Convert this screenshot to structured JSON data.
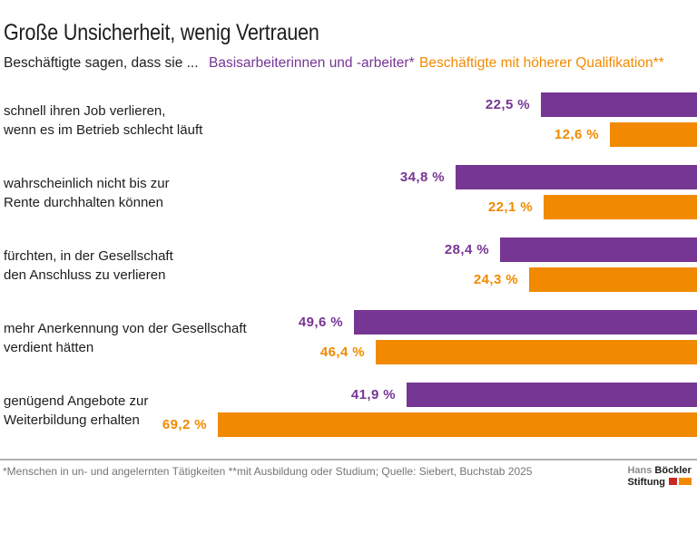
{
  "title": "Große Unsicherheit, wenig Vertrauen",
  "subtitle": "Beschäftigte sagen, dass sie ...",
  "legend": {
    "series1_label": "Basisarbeiterinnen und -arbeiter*",
    "series2_label": "Beschäftigte mit höherer Qualifikation**"
  },
  "colors": {
    "series1_purple": "#763693",
    "series2_orange": "#F18A00",
    "text": "#1d1d1b",
    "footnote_gray": "#757575",
    "divider_gray": "#b0b0b0",
    "logo_red": "#cb2821",
    "logo_orange": "#F18A00"
  },
  "chart_data": {
    "type": "bar",
    "orientation": "horizontal",
    "bars_right_aligned": true,
    "unit": "%",
    "xlim": [
      0,
      69.2
    ],
    "grid": false,
    "legend_position": "top",
    "title": "Große Unsicherheit, wenig Vertrauen",
    "subtitle": "Beschäftigte sagen, dass sie ...",
    "categories": [
      {
        "line1": "schnell ihren Job verlieren,",
        "line2": "wenn es im Betrieb schlecht läuft"
      },
      {
        "line1": "wahrscheinlich nicht bis zur",
        "line2": "Rente durchhalten können"
      },
      {
        "line1": "fürchten, in der Gesellschaft",
        "line2": "den Anschluss zu verlieren"
      },
      {
        "line1": "mehr Anerkennung von der Gesellschaft",
        "line2": "verdient hätten"
      },
      {
        "line1": "genügend Angebote zur",
        "line2": "Weiterbildung erhalten"
      }
    ],
    "series": [
      {
        "name": "Basisarbeiterinnen und -arbeiter*",
        "color": "#763693",
        "values": [
          22.5,
          34.8,
          28.4,
          49.6,
          41.9
        ],
        "labels": [
          "22,5 %",
          "34,8 %",
          "28,4 %",
          "49,6 %",
          "41,9 %"
        ]
      },
      {
        "name": "Beschäftigte mit höherer Qualifikation**",
        "color": "#F18A00",
        "values": [
          12.6,
          22.1,
          24.3,
          46.4,
          69.2
        ],
        "labels": [
          "12,6 %",
          "22,1 %",
          "24,3 %",
          "46,4 %",
          "69,2 %"
        ]
      }
    ]
  },
  "footer": {
    "note": "*Menschen in un- und angelernten Tätigkeiten **mit Ausbildung oder Studium; Quelle: Siebert, Buchstab 2025",
    "logo": {
      "line1_light": "Hans",
      "line1_bold": "Böckler",
      "line2_bold": "Stiftung"
    }
  }
}
